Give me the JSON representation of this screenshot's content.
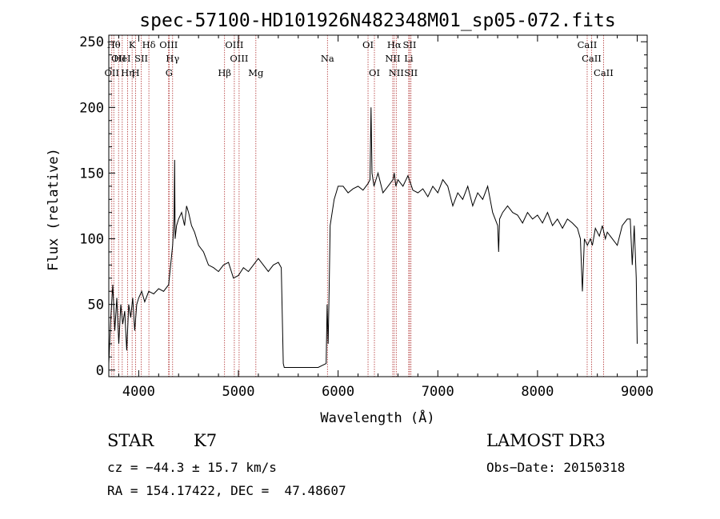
{
  "chart_data": {
    "type": "line",
    "title": "spec-57100-HD101926N482348M01_sp05-072.fits",
    "xlabel": "Wavelength (Å)",
    "ylabel": "Flux (relative)",
    "xlim": [
      3700,
      9100
    ],
    "ylim": [
      -5,
      255
    ],
    "xticks": [
      4000,
      5000,
      6000,
      7000,
      8000,
      9000
    ],
    "yticks": [
      0,
      50,
      100,
      150,
      200,
      250
    ],
    "grid": false,
    "series": [
      {
        "values_note": "",
        "x": [
          3700,
          3720,
          3740,
          3760,
          3780,
          3800,
          3820,
          3840,
          3860,
          3880,
          3900,
          3920,
          3940,
          3960,
          3980,
          4000,
          4030,
          4060,
          4100,
          4150,
          4200,
          4250,
          4300,
          4320,
          4340,
          4355,
          4360,
          4365,
          4380,
          4400,
          4430,
          4460,
          4480,
          4500,
          4530,
          4560,
          4600,
          4650,
          4700,
          4750,
          4800,
          4850,
          4900,
          4950,
          5000,
          5050,
          5100,
          5150,
          5200,
          5250,
          5300,
          5350,
          5400,
          5430,
          5450,
          5460,
          5500,
          5600,
          5700,
          5800,
          5880,
          5890,
          5900,
          5910,
          5920,
          5940,
          5960,
          5980,
          6000,
          6050,
          6100,
          6150,
          6200,
          6250,
          6300,
          6320,
          6330,
          6340,
          6360,
          6400,
          6450,
          6500,
          6550,
          6563,
          6580,
          6600,
          6650,
          6700,
          6750,
          6800,
          6850,
          6900,
          6950,
          7000,
          7050,
          7100,
          7150,
          7200,
          7250,
          7300,
          7350,
          7400,
          7450,
          7500,
          7550,
          7600,
          7610,
          7620,
          7650,
          7700,
          7750,
          7800,
          7850,
          7900,
          7950,
          8000,
          8050,
          8100,
          8150,
          8200,
          8250,
          8300,
          8350,
          8400,
          8430,
          8450,
          8470,
          8500,
          8530,
          8550,
          8580,
          8620,
          8650,
          8680,
          8700,
          8750,
          8800,
          8850,
          8900,
          8930,
          8950,
          8970,
          8990,
          9000
        ],
        "y": [
          5,
          40,
          65,
          30,
          55,
          20,
          50,
          35,
          45,
          15,
          50,
          40,
          55,
          30,
          50,
          55,
          60,
          52,
          60,
          58,
          62,
          60,
          65,
          80,
          95,
          115,
          160,
          100,
          110,
          115,
          120,
          110,
          125,
          120,
          110,
          105,
          95,
          90,
          80,
          78,
          75,
          80,
          82,
          70,
          72,
          78,
          75,
          80,
          85,
          80,
          75,
          80,
          82,
          78,
          5,
          2,
          2,
          2,
          2,
          2,
          5,
          50,
          20,
          60,
          110,
          120,
          130,
          135,
          140,
          140,
          135,
          138,
          140,
          137,
          142,
          145,
          200,
          150,
          140,
          150,
          135,
          140,
          145,
          150,
          140,
          145,
          140,
          148,
          137,
          135,
          138,
          132,
          140,
          135,
          145,
          140,
          125,
          135,
          130,
          140,
          125,
          135,
          130,
          140,
          120,
          110,
          90,
          115,
          120,
          125,
          120,
          118,
          112,
          120,
          115,
          118,
          112,
          120,
          110,
          115,
          108,
          115,
          112,
          108,
          100,
          60,
          100,
          95,
          100,
          95,
          108,
          102,
          110,
          100,
          105,
          100,
          95,
          110,
          115,
          115,
          80,
          110,
          70,
          20
        ]
      }
    ],
    "line_markers": [
      {
        "wave": 3750,
        "label": "Hθ",
        "row": 1
      },
      {
        "wave": 3798,
        "label": "OII",
        "row": 2
      },
      {
        "wave": 3730,
        "label": "OII",
        "row": 3
      },
      {
        "wave": 3835,
        "label": "HeI",
        "row": 2
      },
      {
        "wave": 3889,
        "label": "Hη",
        "row": 3
      },
      {
        "wave": 3934,
        "label": "K",
        "row": 1
      },
      {
        "wave": 3969,
        "label": "H",
        "row": 3
      },
      {
        "wave": 4026,
        "label": "SII",
        "row": 2
      },
      {
        "wave": 4102,
        "label": "Hδ",
        "row": 1
      },
      {
        "wave": 4300,
        "label": "OIII",
        "row": 1
      },
      {
        "wave": 4340,
        "label": "Hγ",
        "row": 2
      },
      {
        "wave": 4305,
        "label": "G",
        "row": 3
      },
      {
        "wave": 4861,
        "label": "Hβ",
        "row": 3
      },
      {
        "wave": 4959,
        "label": "OIII",
        "row": 1
      },
      {
        "wave": 5007,
        "label": "OIII",
        "row": 2
      },
      {
        "wave": 5175,
        "label": "Mg",
        "row": 3
      },
      {
        "wave": 5893,
        "label": "Na",
        "row": 2
      },
      {
        "wave": 6300,
        "label": "OI",
        "row": 1
      },
      {
        "wave": 6364,
        "label": "OI",
        "row": 3
      },
      {
        "wave": 6563,
        "label": "Hα",
        "row": 1
      },
      {
        "wave": 6548,
        "label": "NII",
        "row": 2
      },
      {
        "wave": 6583,
        "label": "NII",
        "row": 3
      },
      {
        "wave": 6717,
        "label": "SII",
        "row": 1
      },
      {
        "wave": 6708,
        "label": "Li",
        "row": 2
      },
      {
        "wave": 6731,
        "label": "SII",
        "row": 3
      },
      {
        "wave": 8498,
        "label": "CaII",
        "row": 1
      },
      {
        "wave": 8542,
        "label": "CaII",
        "row": 2
      },
      {
        "wave": 8662,
        "label": "CaII",
        "row": 3
      }
    ]
  },
  "info": {
    "class": "STAR",
    "subclass": "K7",
    "survey": "LAMOST DR3",
    "cz": "cz = −44.3 ± 15.7 km/s",
    "obsdate": "Obs−Date: 20150318",
    "radec": "RA = 154.17422, DEC =  47.48607"
  },
  "colors": {
    "spectrum": "#000000",
    "marker": "#b03030"
  }
}
